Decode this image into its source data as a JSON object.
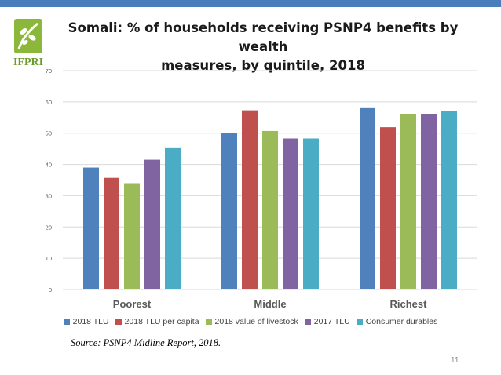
{
  "logo": {
    "text": "IFPRI",
    "color": "#6a9a2a"
  },
  "title": {
    "line1": "Somali: % of households receiving PSNP4 benefits by wealth",
    "line2": "measures, by quintile, 2018"
  },
  "chart_data": {
    "type": "bar",
    "categories": [
      "Poorest",
      "Middle",
      "Richest"
    ],
    "series": [
      {
        "name": "2018 TLU",
        "color": "#4f81bd",
        "values": [
          39,
          50,
          58
        ]
      },
      {
        "name": "2018 TLU per capita",
        "color": "#c0504d",
        "values": [
          35.7,
          57.3,
          51.9
        ]
      },
      {
        "name": "2018 value of livestock",
        "color": "#9bbb59",
        "values": [
          34,
          50.7,
          56.2
        ]
      },
      {
        "name": "2017 TLU",
        "color": "#8064a2",
        "values": [
          41.5,
          48.3,
          56.2
        ]
      },
      {
        "name": "Consumer durables",
        "color": "#4bacc6",
        "values": [
          45.2,
          48.3,
          57
        ]
      }
    ],
    "ylim": [
      0,
      70
    ],
    "yticks": [
      0,
      10,
      20,
      30,
      40,
      50,
      60,
      70
    ],
    "grid": true,
    "legend_position": "bottom"
  },
  "source": "Source: PSNP4 Midline Report, 2018.",
  "page_number": "11"
}
